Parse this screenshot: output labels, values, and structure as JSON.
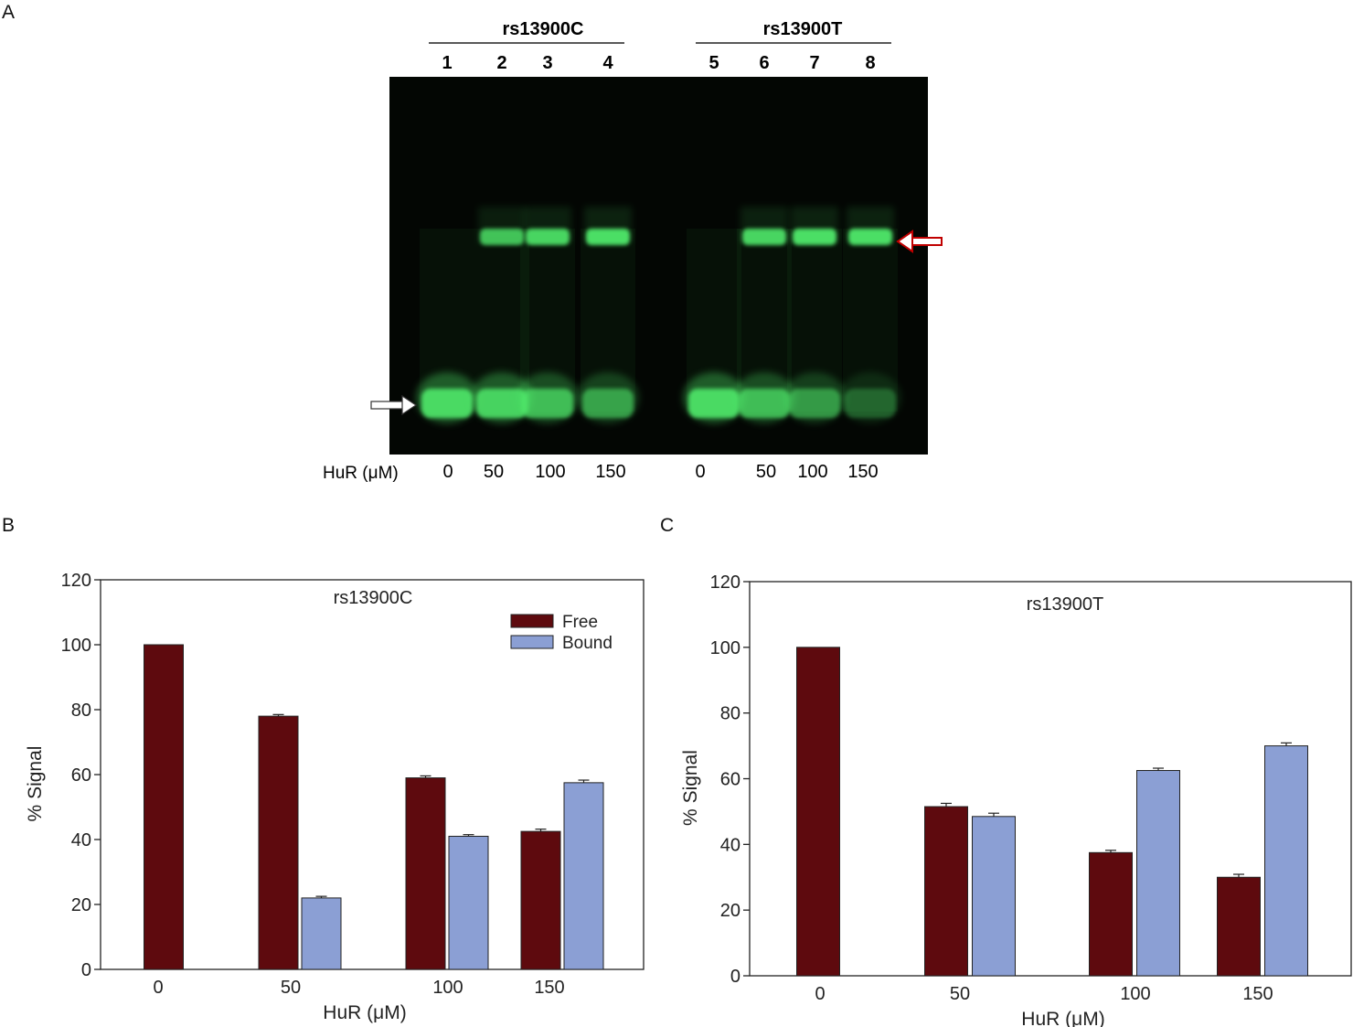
{
  "panel_labels": {
    "a": "A",
    "b": "B",
    "c": "C"
  },
  "gel": {
    "group_left": "rs13900C",
    "group_right": "rs13900T",
    "lane_numbers": [
      "1",
      "2",
      "3",
      "4",
      "5",
      "6",
      "7",
      "8"
    ],
    "conc_label": "HuR (μM)",
    "concentrations": [
      "0",
      "50",
      "100",
      "150",
      "0",
      "50",
      "100",
      "150"
    ],
    "band_color": "#4fe86a",
    "bound_arrow_color": "#c00000"
  },
  "chart_data": [
    {
      "type": "bar",
      "title": "rs13900C",
      "xlabel": "HuR (μM)",
      "ylabel": "% Signal",
      "ylim": [
        0,
        120
      ],
      "yticks": [
        "0",
        "20",
        "40",
        "60",
        "80",
        "100",
        "120"
      ],
      "categories": [
        "0",
        "50",
        "100",
        "150"
      ],
      "legend": "top-right",
      "series": [
        {
          "name": "Free",
          "color": "#5e0a0e",
          "values": [
            100,
            78,
            59,
            42.5
          ],
          "errors": [
            0,
            0.5,
            0.6,
            0.7
          ]
        },
        {
          "name": "Bound",
          "color": "#8b9fd4",
          "values": [
            null,
            22,
            41,
            57.5
          ],
          "errors": [
            0,
            0.5,
            0.5,
            0.8
          ]
        }
      ]
    },
    {
      "type": "bar",
      "title": "rs13900T",
      "xlabel": "HuR (μM)",
      "ylabel": "% Signal",
      "ylim": [
        0,
        120
      ],
      "yticks": [
        "0",
        "20",
        "40",
        "60",
        "80",
        "100",
        "120"
      ],
      "categories": [
        "0",
        "50",
        "100",
        "150"
      ],
      "series": [
        {
          "name": "Free",
          "color": "#5e0a0e",
          "values": [
            100,
            51.5,
            37.5,
            30
          ],
          "errors": [
            0,
            1,
            0.7,
            0.9
          ]
        },
        {
          "name": "Bound",
          "color": "#8b9fd4",
          "values": [
            null,
            48.5,
            62.5,
            70
          ],
          "errors": [
            0,
            1,
            0.7,
            0.9
          ]
        }
      ]
    }
  ]
}
